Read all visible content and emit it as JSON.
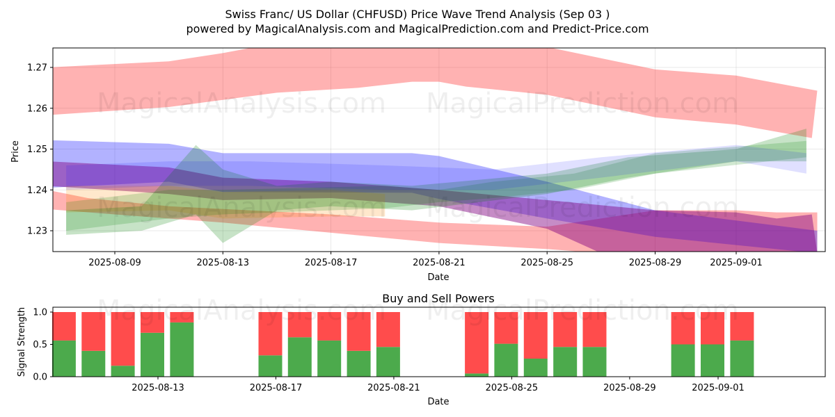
{
  "title_line1": "Swiss Franc/ US Dollar (CHFUSD) Price Wave Trend Analysis (Sep 03 )",
  "title_line2": "powered by MagicalAnalysis.com and MagicalPrediction.com and Predict-Price.com",
  "watermark_left": "MagicalAnalysis.com",
  "watermark_right": "MagicalPrediction.com",
  "colors": {
    "red": "#ff0000",
    "blue": "#0000ff",
    "green": "#008000",
    "purple": "#800080",
    "orange": "#ff8c00",
    "buy": "#4caa4c",
    "sell": "#ff4c4c"
  },
  "chart_data": [
    {
      "type": "area",
      "title": "",
      "xlabel": "Date",
      "ylabel": "Price",
      "x_range": [
        "2025-08-06",
        "2025-09-04"
      ],
      "ylim": [
        1.2245,
        1.2745
      ],
      "y_ticks": [
        1.23,
        1.24,
        1.25,
        1.26,
        1.27
      ],
      "y_tick_labels": [
        "1.23",
        "1.24",
        "1.25",
        "1.26",
        "1.27"
      ],
      "x_ticks": [
        "2025-08-09",
        "2025-08-13",
        "2025-08-17",
        "2025-08-21",
        "2025-08-25",
        "2025-08-29",
        "2025-09-01"
      ],
      "grid": true,
      "bands": [
        {
          "name": "red-upper",
          "color": "red",
          "opacity": 0.3,
          "upper": [
            [
              "2025-08-06.5",
              1.27
            ],
            [
              "2025-08-11",
              1.2715
            ],
            [
              "2025-08-13",
              1.2735
            ],
            [
              "2025-08-15",
              1.276
            ],
            [
              "2025-08-21",
              1.276
            ],
            [
              "2025-08-25",
              1.275
            ],
            [
              "2025-08-29",
              1.2695
            ],
            [
              "2025-09-01",
              1.268
            ],
            [
              "2025-09-04",
              1.2643
            ]
          ],
          "lower": [
            [
              "2025-08-06.5",
              1.2583
            ],
            [
              "2025-08-11",
              1.2603
            ],
            [
              "2025-08-15",
              1.2638
            ],
            [
              "2025-08-18",
              1.265
            ],
            [
              "2025-08-20",
              1.2665
            ],
            [
              "2025-08-21",
              1.2665
            ],
            [
              "2025-08-22",
              1.2653
            ],
            [
              "2025-08-25",
              1.2633
            ],
            [
              "2025-08-29",
              1.2578
            ],
            [
              "2025-09-01",
              1.256
            ],
            [
              "2025-09-03.8",
              1.2527
            ]
          ]
        },
        {
          "name": "red-lower",
          "color": "red",
          "opacity": 0.3,
          "upper": [
            [
              "2025-08-06.5",
              1.24
            ],
            [
              "2025-08-08",
              1.238
            ],
            [
              "2025-08-11",
              1.236
            ],
            [
              "2025-08-14",
              1.235
            ],
            [
              "2025-08-17",
              1.234
            ],
            [
              "2025-08-21",
              1.232
            ],
            [
              "2025-08-25",
              1.231
            ],
            [
              "2025-08-29",
              1.235
            ],
            [
              "2025-09-01",
              1.235
            ],
            [
              "2025-09-02.5",
              1.2345
            ],
            [
              "2025-09-04",
              1.2345
            ]
          ],
          "lower": [
            [
              "2025-08-06.5",
              1.2353
            ],
            [
              "2025-08-09",
              1.234
            ],
            [
              "2025-08-13",
              1.232
            ],
            [
              "2025-08-17",
              1.2295
            ],
            [
              "2025-08-21",
              1.227
            ],
            [
              "2025-08-25",
              1.2255
            ],
            [
              "2025-08-27",
              1.2245
            ],
            [
              "2025-09-04",
              1.2245
            ]
          ]
        },
        {
          "name": "blue-upper",
          "color": "blue",
          "opacity": 0.3,
          "upper": [
            [
              "2025-08-06.5",
              1.2522
            ],
            [
              "2025-08-11",
              1.2513
            ],
            [
              "2025-08-13",
              1.249
            ],
            [
              "2025-08-20",
              1.249
            ],
            [
              "2025-08-21",
              1.2483
            ],
            [
              "2025-08-25",
              1.242
            ],
            [
              "2025-08-29",
              1.235
            ],
            [
              "2025-09-04",
              1.23
            ]
          ],
          "lower": [
            [
              "2025-08-06.5",
              1.2405
            ],
            [
              "2025-08-11",
              1.242
            ],
            [
              "2025-08-13",
              1.2395
            ],
            [
              "2025-08-20",
              1.2393
            ],
            [
              "2025-08-21",
              1.2378
            ],
            [
              "2025-08-25",
              1.233
            ],
            [
              "2025-08-29",
              1.2285
            ],
            [
              "2025-09-04",
              1.2245
            ]
          ]
        },
        {
          "name": "purple",
          "color": "purple",
          "opacity": 0.45,
          "upper": [
            [
              "2025-08-06.5",
              1.247
            ],
            [
              "2025-08-11",
              1.2455
            ],
            [
              "2025-08-13",
              1.243
            ],
            [
              "2025-08-17",
              1.242
            ],
            [
              "2025-08-21",
              1.24
            ],
            [
              "2025-08-25",
              1.2375
            ],
            [
              "2025-08-29",
              1.235
            ],
            [
              "2025-09-01",
              1.2345
            ],
            [
              "2025-09-02.5",
              1.233
            ],
            [
              "2025-09-03.8",
              1.234
            ],
            [
              "2025-09-04",
              1.2245
            ]
          ],
          "lower": [
            [
              "2025-08-06.5",
              1.241
            ],
            [
              "2025-08-11",
              1.239
            ],
            [
              "2025-08-13",
              1.2375
            ],
            [
              "2025-08-17",
              1.238
            ],
            [
              "2025-08-21",
              1.236
            ],
            [
              "2025-08-25",
              1.2305
            ],
            [
              "2025-08-27",
              1.2245
            ],
            [
              "2025-09-04",
              1.2245
            ]
          ]
        },
        {
          "name": "orange",
          "color": "orange",
          "opacity": 0.2,
          "upper": [
            [
              "2025-08-07.2",
              1.241
            ],
            [
              "2025-08-11",
              1.241
            ],
            [
              "2025-08-13",
              1.2395
            ],
            [
              "2025-08-17",
              1.24
            ],
            [
              "2025-08-19",
              1.239
            ]
          ],
          "lower": [
            [
              "2025-08-07.2",
              1.2345
            ],
            [
              "2025-08-11",
              1.235
            ],
            [
              "2025-08-13",
              1.233
            ],
            [
              "2025-08-17",
              1.2335
            ],
            [
              "2025-08-19",
              1.2335
            ]
          ]
        },
        {
          "name": "green",
          "color": "green",
          "opacity": 0.22,
          "upper": [
            [
              "2025-08-07.2",
              1.235
            ],
            [
              "2025-08-10",
              1.236
            ],
            [
              "2025-08-12",
              1.251
            ],
            [
              "2025-08-13",
              1.245
            ],
            [
              "2025-08-15",
              1.241
            ],
            [
              "2025-08-17",
              1.242
            ],
            [
              "2025-08-20",
              1.241
            ],
            [
              "2025-08-25",
              1.244
            ],
            [
              "2025-08-28",
              1.248
            ],
            [
              "2025-09-01",
              1.25
            ],
            [
              "2025-09-03.6",
              1.255
            ]
          ],
          "lower": [
            [
              "2025-08-07.2",
              1.229
            ],
            [
              "2025-08-10",
              1.23
            ],
            [
              "2025-08-12",
              1.234
            ],
            [
              "2025-08-13",
              1.227
            ],
            [
              "2025-08-15",
              1.235
            ],
            [
              "2025-08-17",
              1.236
            ],
            [
              "2025-08-20",
              1.235
            ],
            [
              "2025-08-25",
              1.239
            ],
            [
              "2025-08-28",
              1.243
            ],
            [
              "2025-09-01",
              1.247
            ],
            [
              "2025-09-03.6",
              1.247
            ]
          ]
        },
        {
          "name": "teal",
          "color": "green",
          "opacity": 0.18,
          "upper": [
            [
              "2025-08-07.2",
              1.237
            ],
            [
              "2025-08-11",
              1.24
            ],
            [
              "2025-08-13",
              1.24
            ],
            [
              "2025-08-19",
              1.241
            ],
            [
              "2025-08-21",
              1.24
            ],
            [
              "2025-08-23",
              1.242
            ],
            [
              "2025-08-26",
              1.244
            ],
            [
              "2025-08-29",
              1.249
            ],
            [
              "2025-09-03.6",
              1.252
            ]
          ],
          "lower": [
            [
              "2025-08-07.2",
              1.23
            ],
            [
              "2025-08-11",
              1.233
            ],
            [
              "2025-08-13",
              1.234
            ],
            [
              "2025-08-19",
              1.2355
            ],
            [
              "2025-08-21",
              1.237
            ],
            [
              "2025-08-23",
              1.238
            ],
            [
              "2025-08-26",
              1.24
            ],
            [
              "2025-08-29",
              1.244
            ],
            [
              "2025-09-03.6",
              1.248
            ]
          ]
        },
        {
          "name": "blue-mid",
          "color": "blue",
          "opacity": 0.12,
          "upper": [
            [
              "2025-08-07.2",
              1.246
            ],
            [
              "2025-08-11",
              1.247
            ],
            [
              "2025-08-14",
              1.247
            ],
            [
              "2025-08-19",
              1.246
            ],
            [
              "2025-08-23",
              1.245
            ],
            [
              "2025-08-27",
              1.248
            ],
            [
              "2025-09-01",
              1.251
            ],
            [
              "2025-09-03.6",
              1.249
            ]
          ],
          "lower": [
            [
              "2025-08-07.2",
              1.24
            ],
            [
              "2025-08-11",
              1.241
            ],
            [
              "2025-08-14",
              1.241
            ],
            [
              "2025-08-19",
              1.24
            ],
            [
              "2025-08-23",
              1.24
            ],
            [
              "2025-08-27",
              1.243
            ],
            [
              "2025-09-01",
              1.247
            ],
            [
              "2025-09-03.6",
              1.244
            ]
          ]
        }
      ]
    },
    {
      "type": "bar",
      "title": "Buy and Sell Powers",
      "xlabel": "Date",
      "ylabel": "Signal Strength",
      "ylim": [
        0,
        1.05
      ],
      "y_ticks": [
        0.0,
        0.5,
        1.0
      ],
      "y_tick_labels": [
        "0.0",
        "0.5",
        "1.0"
      ],
      "x_ticks": [
        "2025-08-13",
        "2025-08-17",
        "2025-08-21",
        "2025-08-25",
        "2025-08-29",
        "2025-09-01"
      ],
      "series": [
        {
          "name": "Buy",
          "color": "buy"
        },
        {
          "name": "Sell",
          "color": "sell"
        }
      ],
      "bars": [
        {
          "date": "2025-08-10",
          "buy": 0.56,
          "sell": 0.44
        },
        {
          "date": "2025-08-11",
          "buy": 0.4,
          "sell": 0.6
        },
        {
          "date": "2025-08-12",
          "buy": 0.17,
          "sell": 0.83
        },
        {
          "date": "2025-08-13",
          "buy": 0.68,
          "sell": 0.32
        },
        {
          "date": "2025-08-14",
          "buy": 0.84,
          "sell": 0.16
        },
        {
          "date": "2025-08-17",
          "buy": 0.33,
          "sell": 0.67
        },
        {
          "date": "2025-08-18",
          "buy": 0.61,
          "sell": 0.39
        },
        {
          "date": "2025-08-19",
          "buy": 0.56,
          "sell": 0.44
        },
        {
          "date": "2025-08-20",
          "buy": 0.4,
          "sell": 0.6
        },
        {
          "date": "2025-08-21",
          "buy": 0.46,
          "sell": 0.54
        },
        {
          "date": "2025-08-24",
          "buy": 0.05,
          "sell": 0.95
        },
        {
          "date": "2025-08-25",
          "buy": 0.51,
          "sell": 0.49
        },
        {
          "date": "2025-08-26",
          "buy": 0.28,
          "sell": 0.72
        },
        {
          "date": "2025-08-27",
          "buy": 0.46,
          "sell": 0.54
        },
        {
          "date": "2025-08-28",
          "buy": 0.46,
          "sell": 0.54
        },
        {
          "date": "2025-08-31",
          "buy": 0.5,
          "sell": 0.5
        },
        {
          "date": "2025-09-01",
          "buy": 0.5,
          "sell": 0.5
        },
        {
          "date": "2025-09-02",
          "buy": 0.56,
          "sell": 0.44
        }
      ]
    }
  ]
}
